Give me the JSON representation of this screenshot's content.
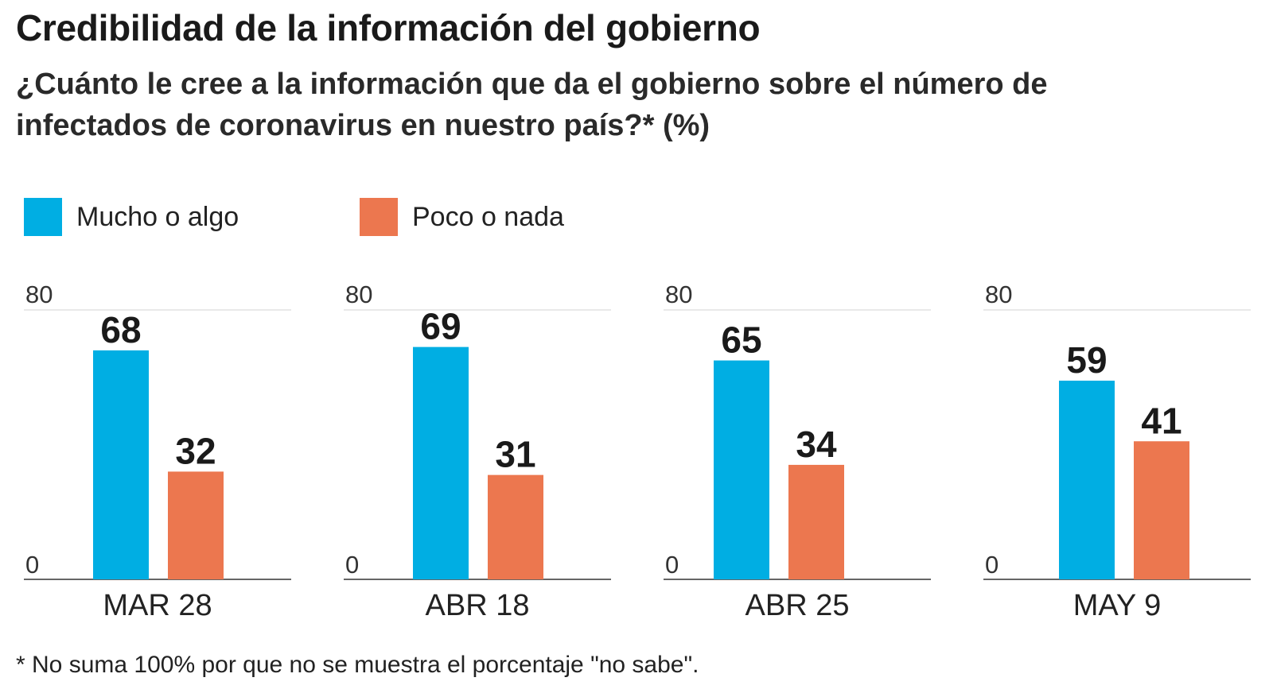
{
  "title": "Credibilidad de la información del gobierno",
  "subtitle": "¿Cuánto le cree a la información que da el gobierno sobre el número de infectados de coronavirus en nuestro país?*  (%)",
  "legend": [
    {
      "label": "Mucho o algo",
      "color": "#00AEE3"
    },
    {
      "label": "Poco o nada",
      "color": "#EC774F"
    }
  ],
  "footnote": "* No suma 100% por que no se muestra el porcentaje \"no sabe\".",
  "chart_data": {
    "type": "bar",
    "title": "Credibilidad de la información del gobierno",
    "ylim": [
      0,
      80
    ],
    "y_ticks": [
      "0",
      "80"
    ],
    "categories": [
      "MAR 28",
      "ABR 18",
      "ABR 25",
      "MAY 9"
    ],
    "series": [
      {
        "name": "Mucho o algo",
        "color": "#00AEE3",
        "values": [
          68,
          69,
          65,
          59
        ]
      },
      {
        "name": "Poco o nada",
        "color": "#EC774F",
        "values": [
          32,
          31,
          34,
          41
        ]
      }
    ]
  }
}
